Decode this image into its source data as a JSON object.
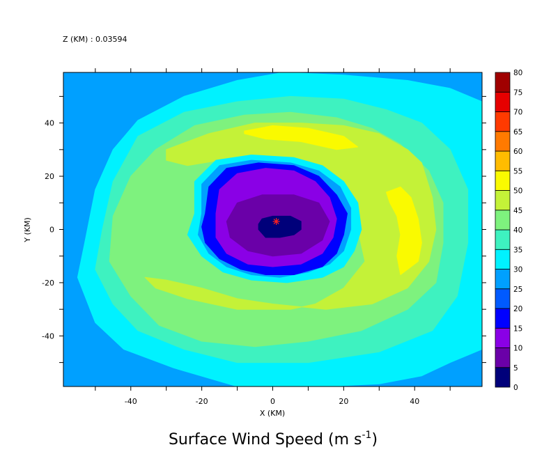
{
  "header": {
    "level_text": "Z (KM) : 0.03594"
  },
  "chart_data": {
    "type": "heatmap",
    "title": "Surface Wind Speed (m s",
    "title_superscript": "-1",
    "title_suffix": ")",
    "xlabel": "X (KM)",
    "ylabel": "Y (KM)",
    "xlim": [
      -59,
      59
    ],
    "ylim": [
      -59,
      59
    ],
    "x_ticks": [
      -40,
      -20,
      0,
      20,
      40
    ],
    "x_tick_labels": [
      "-40",
      "-20",
      "0",
      "20",
      "40"
    ],
    "y_ticks": [
      -40,
      -20,
      0,
      20,
      40
    ],
    "y_tick_labels": [
      "-40",
      "-20",
      "0",
      "20",
      "40"
    ],
    "minor_tick_step": 10,
    "colorbar": {
      "levels": [
        0,
        5,
        10,
        15,
        20,
        25,
        30,
        35,
        40,
        45,
        50,
        55,
        60,
        65,
        70,
        75,
        80
      ],
      "labels": [
        "0",
        "5",
        "10",
        "15",
        "20",
        "25",
        "30",
        "35",
        "40",
        "45",
        "50",
        "55",
        "60",
        "65",
        "70",
        "75",
        "80"
      ],
      "colors": [
        "#00007a",
        "#6a00a8",
        "#8a00e6",
        "#0000ff",
        "#005aff",
        "#00a0ff",
        "#00f2ff",
        "#3ef2c0",
        "#7ef27e",
        "#c4f238",
        "#fafa00",
        "#ffbc00",
        "#ff7a00",
        "#ff3a00",
        "#e60000",
        "#a00000"
      ]
    },
    "center_marker": {
      "x": 1,
      "y": 3,
      "symbol": "*",
      "color": "#ff2020"
    },
    "filled_contours": [
      {
        "min": 25,
        "max": 30,
        "color": "#00a0ff",
        "points": [
          [
            -59,
            -59
          ],
          [
            59,
            -59
          ],
          [
            59,
            59
          ],
          [
            -59,
            59
          ]
        ]
      },
      {
        "min": 30,
        "max": 35,
        "color": "#00f2ff",
        "points": [
          [
            -55,
            -18
          ],
          [
            -53,
            -5
          ],
          [
            -50,
            15
          ],
          [
            -45,
            30
          ],
          [
            -38,
            41
          ],
          [
            -25,
            50
          ],
          [
            -10,
            56
          ],
          [
            3,
            59
          ],
          [
            20,
            58
          ],
          [
            38,
            56
          ],
          [
            50,
            53
          ],
          [
            59,
            48
          ],
          [
            59,
            -45
          ],
          [
            50,
            -50
          ],
          [
            42,
            -55
          ],
          [
            30,
            -58
          ],
          [
            15,
            -59
          ],
          [
            -10,
            -59
          ],
          [
            -28,
            -52
          ],
          [
            -42,
            -45
          ],
          [
            -50,
            -35
          ]
        ]
      },
      {
        "min": 35,
        "max": 40,
        "color": "#3ef2c0",
        "points": [
          [
            -50,
            -15
          ],
          [
            -48,
            0
          ],
          [
            -45,
            18
          ],
          [
            -38,
            35
          ],
          [
            -25,
            44
          ],
          [
            -10,
            48
          ],
          [
            5,
            50
          ],
          [
            20,
            49
          ],
          [
            32,
            45
          ],
          [
            42,
            40
          ],
          [
            50,
            30
          ],
          [
            55,
            15
          ],
          [
            55,
            -5
          ],
          [
            52,
            -25
          ],
          [
            45,
            -38
          ],
          [
            30,
            -46
          ],
          [
            10,
            -50
          ],
          [
            -10,
            -50
          ],
          [
            -25,
            -45
          ],
          [
            -38,
            -38
          ],
          [
            -45,
            -28
          ]
        ]
      },
      {
        "min": 40,
        "max": 45,
        "color": "#7ef27e",
        "points": [
          [
            -46,
            -12
          ],
          [
            -45,
            5
          ],
          [
            -40,
            20
          ],
          [
            -33,
            30
          ],
          [
            -22,
            39
          ],
          [
            -8,
            43
          ],
          [
            5,
            44
          ],
          [
            18,
            42
          ],
          [
            28,
            38
          ],
          [
            36,
            32
          ],
          [
            44,
            22
          ],
          [
            48,
            10
          ],
          [
            48,
            -5
          ],
          [
            46,
            -20
          ],
          [
            38,
            -30
          ],
          [
            25,
            -38
          ],
          [
            10,
            -42
          ],
          [
            -5,
            -44
          ],
          [
            -20,
            -42
          ],
          [
            -32,
            -36
          ],
          [
            -40,
            -25
          ]
        ]
      },
      {
        "min": 45,
        "max": 50,
        "color": "#c4f238",
        "points": [
          [
            -30,
            30
          ],
          [
            -18,
            36
          ],
          [
            -5,
            40
          ],
          [
            8,
            40
          ],
          [
            20,
            39
          ],
          [
            30,
            36
          ],
          [
            38,
            30
          ],
          [
            42,
            25
          ],
          [
            45,
            12
          ],
          [
            46,
            0
          ],
          [
            44,
            -12
          ],
          [
            38,
            -22
          ],
          [
            28,
            -28
          ],
          [
            15,
            -30
          ],
          [
            0,
            -28
          ],
          [
            -10,
            -26
          ],
          [
            -20,
            -22
          ],
          [
            -30,
            -19
          ],
          [
            -36,
            -18
          ],
          [
            -33,
            -22
          ],
          [
            -24,
            -26
          ],
          [
            -10,
            -30
          ],
          [
            5,
            -30
          ],
          [
            12,
            -28
          ],
          [
            20,
            -22
          ],
          [
            26,
            -12
          ],
          [
            24,
            0
          ],
          [
            22,
            10
          ],
          [
            18,
            18
          ],
          [
            12,
            24
          ],
          [
            5,
            27
          ],
          [
            -5,
            27
          ],
          [
            -15,
            26
          ],
          [
            -24,
            24
          ],
          [
            -30,
            26
          ]
        ]
      },
      {
        "min": 50,
        "max": 55,
        "color": "#fafa00",
        "points": [
          [
            -8,
            37
          ],
          [
            0,
            39
          ],
          [
            10,
            38
          ],
          [
            20,
            35
          ],
          [
            24,
            31
          ],
          [
            18,
            30
          ],
          [
            8,
            33
          ],
          [
            -2,
            34
          ],
          [
            -8,
            36
          ]
        ]
      },
      {
        "min": 50,
        "max": 55,
        "color": "#fafa00",
        "points": [
          [
            32,
            14
          ],
          [
            36,
            16
          ],
          [
            39,
            12
          ],
          [
            41,
            4
          ],
          [
            42,
            -5
          ],
          [
            41,
            -12
          ],
          [
            36,
            -17
          ],
          [
            35,
            -10
          ],
          [
            36,
            -2
          ],
          [
            35,
            5
          ],
          [
            33,
            10
          ]
        ]
      },
      {
        "min": 30,
        "max": 35,
        "color": "#00f2ff",
        "points": [
          [
            -22,
            6
          ],
          [
            -22,
            18
          ],
          [
            -16,
            26
          ],
          [
            -6,
            28
          ],
          [
            6,
            27
          ],
          [
            14,
            24
          ],
          [
            20,
            18
          ],
          [
            24,
            10
          ],
          [
            25,
            0
          ],
          [
            23,
            -8
          ],
          [
            20,
            -14
          ],
          [
            14,
            -18
          ],
          [
            4,
            -20
          ],
          [
            -6,
            -19
          ],
          [
            -14,
            -16
          ],
          [
            -20,
            -10
          ],
          [
            -24,
            -2
          ]
        ]
      },
      {
        "min": 25,
        "max": 30,
        "color": "#00a0ff",
        "points": [
          [
            -20,
            6
          ],
          [
            -20,
            17
          ],
          [
            -15,
            24
          ],
          [
            -6,
            26
          ],
          [
            5,
            25
          ],
          [
            13,
            22
          ],
          [
            19,
            16
          ],
          [
            22,
            8
          ],
          [
            22,
            0
          ],
          [
            20,
            -8
          ],
          [
            16,
            -13
          ],
          [
            10,
            -16
          ],
          [
            2,
            -18
          ],
          [
            -6,
            -17
          ],
          [
            -13,
            -14
          ],
          [
            -18,
            -9
          ],
          [
            -21,
            -2
          ]
        ]
      },
      {
        "min": 15,
        "max": 20,
        "color": "#0000ff",
        "points": [
          [
            -19,
            6
          ],
          [
            -18,
            16
          ],
          [
            -13,
            23
          ],
          [
            -4,
            25
          ],
          [
            6,
            24
          ],
          [
            13,
            20
          ],
          [
            18,
            13
          ],
          [
            21,
            6
          ],
          [
            20,
            -2
          ],
          [
            18,
            -9
          ],
          [
            14,
            -14
          ],
          [
            6,
            -17
          ],
          [
            -2,
            -17
          ],
          [
            -9,
            -15
          ],
          [
            -15,
            -11
          ],
          [
            -19,
            -5
          ],
          [
            -20,
            1
          ]
        ]
      },
      {
        "min": 10,
        "max": 15,
        "color": "#8a00e6",
        "points": [
          [
            -16,
            6
          ],
          [
            -15,
            15
          ],
          [
            -10,
            21
          ],
          [
            -2,
            23
          ],
          [
            6,
            22
          ],
          [
            12,
            18
          ],
          [
            16,
            12
          ],
          [
            18,
            4
          ],
          [
            17,
            -3
          ],
          [
            14,
            -9
          ],
          [
            8,
            -13
          ],
          [
            0,
            -14
          ],
          [
            -7,
            -13
          ],
          [
            -13,
            -9
          ],
          [
            -16,
            -3
          ]
        ]
      },
      {
        "min": 5,
        "max": 10,
        "color": "#6a00a8",
        "points": [
          [
            -13,
            3
          ],
          [
            -10,
            10
          ],
          [
            -3,
            13
          ],
          [
            6,
            13
          ],
          [
            13,
            10
          ],
          [
            16,
            3
          ],
          [
            14,
            -4
          ],
          [
            8,
            -9
          ],
          [
            0,
            -10
          ],
          [
            -7,
            -8
          ],
          [
            -12,
            -3
          ]
        ]
      },
      {
        "min": 0,
        "max": 5,
        "color": "#00007a",
        "points": [
          [
            -4,
            2
          ],
          [
            -3,
            4
          ],
          [
            0,
            5
          ],
          [
            5,
            5
          ],
          [
            8,
            3
          ],
          [
            8,
            0
          ],
          [
            6,
            -2
          ],
          [
            2,
            -3
          ],
          [
            -2,
            -3
          ],
          [
            -4,
            0
          ]
        ]
      }
    ]
  }
}
